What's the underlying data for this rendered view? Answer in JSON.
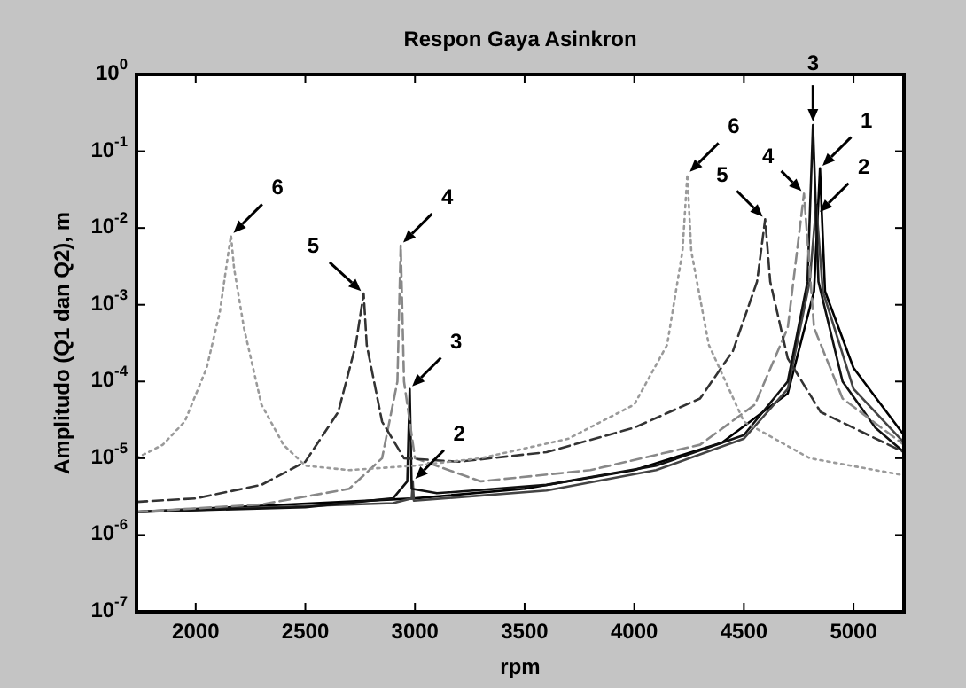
{
  "chart_data": {
    "type": "line",
    "title": "Respon Gaya Asinkron",
    "xlabel": "rpm",
    "ylabel": "Amplitudo (Q1 dan Q2), m",
    "log": "y",
    "grid": false,
    "marker": "none",
    "xlim": [
      1730,
      5230
    ],
    "xticks": [
      2000,
      2500,
      3000,
      3500,
      4000,
      4500,
      5000
    ],
    "ylim": [
      1e-07,
      1
    ],
    "yticks": [
      {
        "value": 1,
        "label": "10$^{0}$"
      },
      {
        "value": 0.1,
        "label": "10$^{-1}$"
      },
      {
        "value": 0.01,
        "label": "10$^{-2}$"
      },
      {
        "value": 0.001,
        "label": "10$^{-3}$"
      },
      {
        "value": 0.0001,
        "label": "10$^{-4}$"
      },
      {
        "value": 1e-05,
        "label": "10$^{-5}$"
      },
      {
        "value": 1e-06,
        "label": "10$^{-6}$"
      },
      {
        "value": 1e-07,
        "label": "10$^{-7}$"
      }
    ],
    "series": [
      {
        "color": "#000000",
        "line_style": "solid",
        "x": [
          1730,
          3000,
          3500,
          4000,
          4400,
          4700,
          4820,
          4847,
          4870,
          5000,
          5230
        ],
        "values": [
          2e-06,
          3e-06,
          4e-06,
          7e-06,
          1.6e-05,
          7e-05,
          0.0015,
          0.06,
          0.0015,
          0.00015,
          2e-05
        ]
      },
      {
        "color": "#444444",
        "line_style": "solid",
        "x": [
          1730,
          2900,
          2985,
          2990,
          2995,
          3600,
          4100,
          4500,
          4700,
          4800,
          4830,
          4860,
          5000,
          5230
        ],
        "values": [
          2e-06,
          2.6e-06,
          3e-06,
          5e-06,
          2.8e-06,
          3.8e-06,
          7e-06,
          1.8e-05,
          8e-05,
          0.002,
          0.02,
          0.0015,
          8e-05,
          1.6e-05
        ]
      },
      {
        "color": "#111111",
        "line_style": "solid",
        "x": [
          1730,
          2500,
          2900,
          2965,
          2976,
          2985,
          3100,
          3600,
          4100,
          4500,
          4700,
          4790,
          4815,
          4840,
          4950,
          5100,
          5230
        ],
        "values": [
          2e-06,
          2.3e-06,
          3e-06,
          5e-06,
          8e-05,
          4e-06,
          3.5e-06,
          4.5e-06,
          8e-06,
          2e-05,
          0.0001,
          0.002,
          0.22,
          0.002,
          0.0001,
          2.5e-05,
          1.2e-05
        ]
      },
      {
        "color": "#888888",
        "line_style": "dashed",
        "x": [
          1730,
          2300,
          2700,
          2850,
          2920,
          2935,
          2950,
          3000,
          3300,
          3800,
          4300,
          4550,
          4700,
          4774,
          4820,
          4950,
          5230
        ],
        "values": [
          2e-06,
          2.5e-06,
          4e-06,
          1e-05,
          0.0001,
          0.006,
          0.0001,
          1e-05,
          5e-06,
          7e-06,
          1.5e-05,
          5e-05,
          0.0005,
          0.028,
          0.0005,
          6e-05,
          1.5e-05
        ]
      },
      {
        "color": "#333333",
        "line_style": "dashed",
        "x": [
          1730,
          2000,
          2300,
          2500,
          2650,
          2730,
          2766,
          2780,
          2850,
          2950,
          3200,
          3600,
          4000,
          4300,
          4450,
          4560,
          4597,
          4620,
          4700,
          4850,
          5230
        ],
        "values": [
          2.7e-06,
          3e-06,
          4.5e-06,
          9e-06,
          4e-05,
          0.0003,
          0.0014,
          0.0003,
          3e-05,
          1e-05,
          9e-06,
          1.2e-05,
          2.5e-05,
          6e-05,
          0.00025,
          0.002,
          0.013,
          0.002,
          0.0002,
          4e-05,
          1.2e-05
        ]
      },
      {
        "color": "#9a9a9a",
        "line_style": "dotted",
        "x": [
          1730,
          1850,
          1950,
          2050,
          2110,
          2150,
          2161,
          2175,
          2220,
          2300,
          2400,
          2500,
          2700,
          3000,
          3300,
          3700,
          4000,
          4150,
          4220,
          4242,
          4260,
          4340,
          4500,
          4800,
          5230
        ],
        "values": [
          1e-05,
          1.5e-05,
          3e-05,
          0.00015,
          0.0008,
          0.005,
          0.008,
          0.003,
          0.0005,
          5e-05,
          1.5e-05,
          8e-06,
          7e-06,
          8e-06,
          1e-05,
          1.8e-05,
          5e-05,
          0.0003,
          0.005,
          0.05,
          0.005,
          0.0003,
          3e-05,
          1e-05,
          6e-06
        ]
      }
    ],
    "annotations": [
      {
        "text": "6",
        "x": 2161,
        "y": 0.008
      },
      {
        "text": "5",
        "x": 2766,
        "y": 0.0014
      },
      {
        "text": "4",
        "x": 2935,
        "y": 0.006
      },
      {
        "text": "3",
        "x": 2976,
        "y": 8e-05
      },
      {
        "text": "2",
        "x": 2990,
        "y": 5e-06
      },
      {
        "text": "6",
        "x": 4242,
        "y": 0.05
      },
      {
        "text": "5",
        "x": 4597,
        "y": 0.013
      },
      {
        "text": "4",
        "x": 4774,
        "y": 0.028
      },
      {
        "text": "3",
        "x": 4815,
        "y": 0.22
      },
      {
        "text": "1",
        "x": 4847,
        "y": 0.06
      },
      {
        "text": "2",
        "x": 4835,
        "y": 0.015
      }
    ]
  }
}
